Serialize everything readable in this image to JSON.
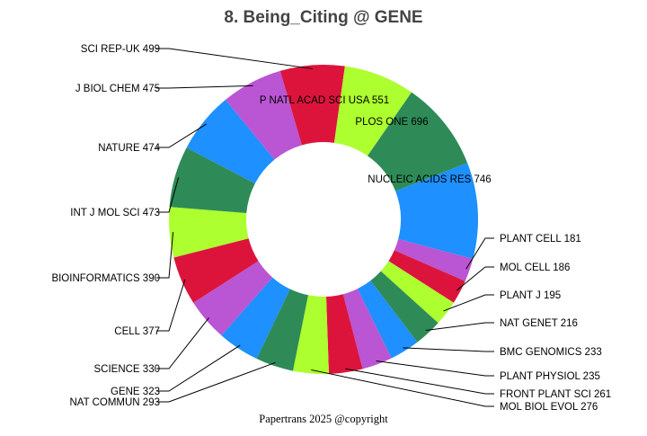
{
  "chart_data": {
    "type": "pie",
    "title": "8. Being_Citing @ GENE",
    "footer": "Papertrans 2025 @copyright",
    "colors": {
      "green": "#2e8b57",
      "blue": "#1e90ff",
      "lime": "#adff2f",
      "red": "#dc143c",
      "purple": "#ba55d3"
    },
    "slices": [
      {
        "label": "NUCLEIC ACIDS RES",
        "value": 746,
        "color": "#1e90ff"
      },
      {
        "label": "PLANT CELL",
        "value": 181,
        "color": "#ba55d3"
      },
      {
        "label": "MOL CELL",
        "value": 186,
        "color": "#dc143c"
      },
      {
        "label": "PLANT J",
        "value": 195,
        "color": "#adff2f"
      },
      {
        "label": "NAT GENET",
        "value": 216,
        "color": "#2e8b57"
      },
      {
        "label": "BMC GENOMICS",
        "value": 233,
        "color": "#1e90ff"
      },
      {
        "label": "PLANT PHYSIOL",
        "value": 235,
        "color": "#ba55d3"
      },
      {
        "label": "FRONT PLANT SCI",
        "value": 261,
        "color": "#dc143c"
      },
      {
        "label": "MOL BIOL EVOL",
        "value": 276,
        "color": "#adff2f"
      },
      {
        "label": "NAT COMMUN",
        "value": 293,
        "color": "#2e8b57"
      },
      {
        "label": "GENE",
        "value": 323,
        "color": "#1e90ff"
      },
      {
        "label": "SCIENCE",
        "value": 330,
        "color": "#ba55d3"
      },
      {
        "label": "CELL",
        "value": 377,
        "color": "#dc143c"
      },
      {
        "label": "BIOINFORMATICS",
        "value": 390,
        "color": "#adff2f"
      },
      {
        "label": "INT J MOL SCI",
        "value": 473,
        "color": "#2e8b57"
      },
      {
        "label": "NATURE",
        "value": 474,
        "color": "#1e90ff"
      },
      {
        "label": "J BIOL CHEM",
        "value": 475,
        "color": "#ba55d3"
      },
      {
        "label": "SCI REP-UK",
        "value": 499,
        "color": "#dc143c"
      },
      {
        "label": "P NATL ACAD SCI USA",
        "value": 551,
        "color": "#adff2f"
      },
      {
        "label": "PLOS ONE",
        "value": 696,
        "color": "#2e8b57"
      }
    ]
  }
}
